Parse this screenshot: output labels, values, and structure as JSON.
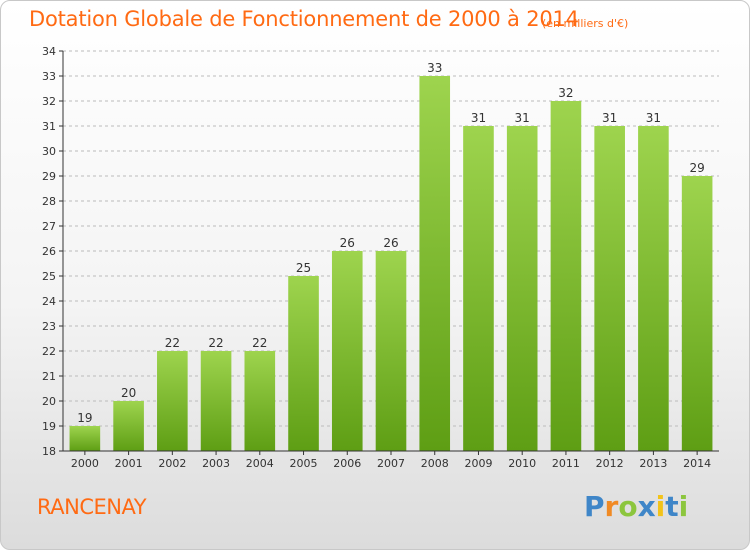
{
  "chart_data": {
    "type": "bar",
    "title": "Dotation Globale de Fonctionnement de 2000 à 2014",
    "subtitle": "(en milliers d'€)",
    "categories": [
      "2000",
      "2001",
      "2002",
      "2003",
      "2004",
      "2005",
      "2006",
      "2007",
      "2008",
      "2009",
      "2010",
      "2011",
      "2012",
      "2013",
      "2014"
    ],
    "values": [
      19,
      20,
      22,
      22,
      22,
      25,
      26,
      26,
      33,
      31,
      31,
      32,
      31,
      31,
      29
    ],
    "ylim": [
      18,
      34
    ],
    "yticks": [
      18,
      19,
      20,
      21,
      22,
      23,
      24,
      25,
      26,
      27,
      28,
      29,
      30,
      31,
      32,
      33,
      34
    ],
    "xlabel": "",
    "ylabel": "",
    "grid": "horizontal-dashed",
    "bar_color_light": "#9ed44e",
    "bar_color_dark": "#5e9e14"
  },
  "commune": "RANCENAY",
  "logo": {
    "letters": [
      "P",
      "r",
      "o",
      "x",
      "i",
      "t",
      "i"
    ],
    "colors": [
      "#3f86c8",
      "#f08a24",
      "#8cc63e",
      "#3f86c8",
      "#f2c31a",
      "#3f86c8",
      "#8cc63e"
    ]
  },
  "colors": {
    "title": "#ff6a13",
    "axis": "#333333",
    "grid": "#bbbbbb"
  }
}
